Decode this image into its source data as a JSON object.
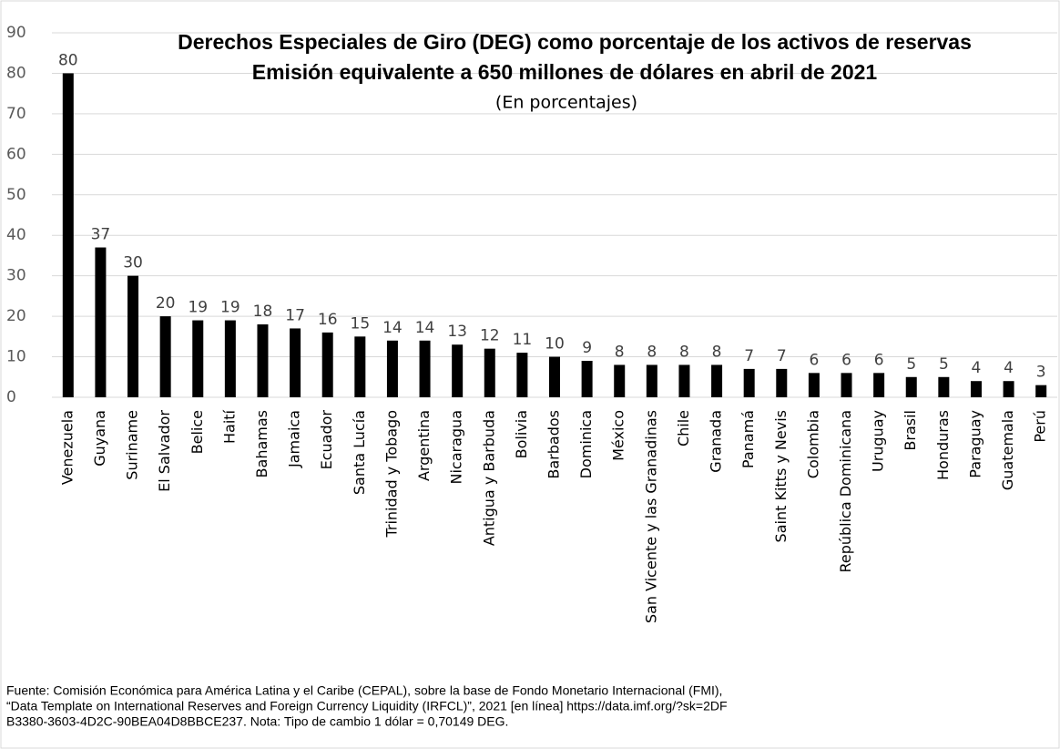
{
  "chart_data": {
    "type": "bar",
    "title": "Derechos Especiales de Giro (DEG) como porcentaje de los activos de reservas",
    "subtitle": "Emisión equivalente a 650 millones de dólares en abril de 2021",
    "unit_note": "(En porcentajes)",
    "categories": [
      "Venezuela",
      "Guyana",
      "Suriname",
      "El Salvador",
      "Belice",
      "Haití",
      "Bahamas",
      "Jamaica",
      "Ecuador",
      "Santa Lucía",
      "Trinidad y Tobago",
      "Argentina",
      "Nicaragua",
      "Antigua y Barbuda",
      "Bolivia",
      "Barbados",
      "Dominica",
      "México",
      "San Vicente y las Granadinas",
      "Chile",
      "Granada",
      "Panamá",
      "Saint Kitts y Nevis",
      "Colombia",
      "República Dominicana",
      "Uruguay",
      "Brasil",
      "Honduras",
      "Paraguay",
      "Guatemala",
      "Perú"
    ],
    "values": [
      80,
      37,
      30,
      20,
      19,
      19,
      18,
      17,
      16,
      15,
      14,
      14,
      13,
      12,
      11,
      10,
      9,
      8,
      8,
      8,
      8,
      7,
      7,
      6,
      6,
      6,
      5,
      5,
      4,
      4,
      3
    ],
    "color": "#000000",
    "ylim": [
      0,
      90
    ],
    "yticks": [
      0,
      10,
      20,
      30,
      40,
      50,
      60,
      70,
      80,
      90
    ],
    "grid": true,
    "note": [
      "Fuente: Comisión Económica para América Latina y el Caribe (CEPAL), sobre la base de Fondo Monetario Internacional (FMI),",
      "“Data Template on International Reserves and Foreign Currency Liquidity (IRFCL)”, 2021 [en línea] https://data.imf.org/?sk=2DF",
      "B3380-3603-4D2C-90BEA04D8BBCE237. Nota: Tipo de cambio 1 dólar = 0,70149 DEG."
    ]
  }
}
